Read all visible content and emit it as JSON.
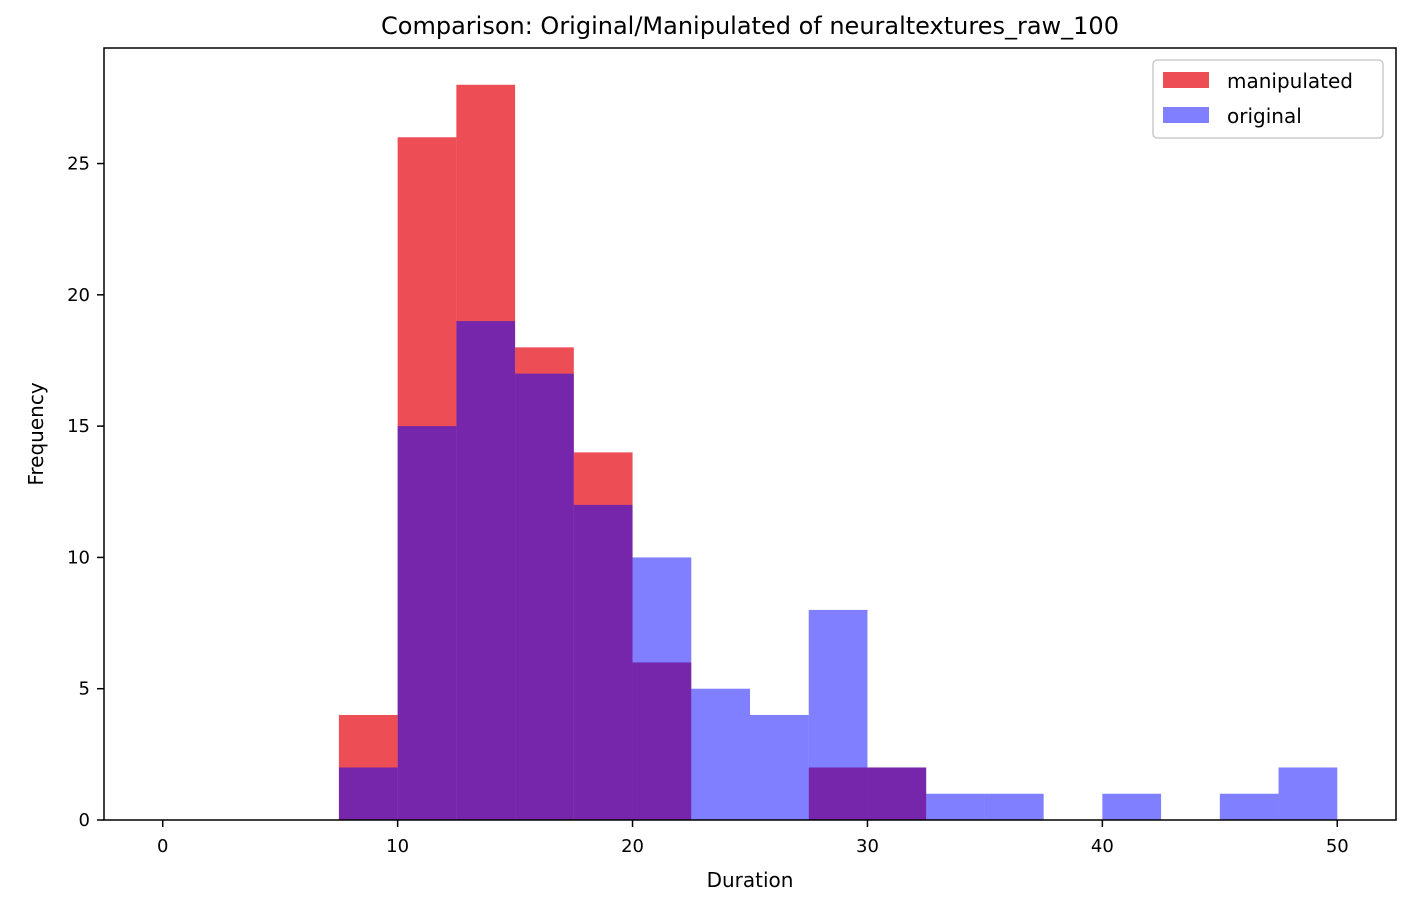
{
  "chart_data": {
    "type": "bar",
    "subtype": "overlaid-histogram",
    "title": "Comparison: Original/Manipulated of neuraltextures_raw_100",
    "xlabel": "Duration",
    "ylabel": "Frequency",
    "xlim": [
      -2.5,
      52.5
    ],
    "ylim": [
      0,
      29.4
    ],
    "xticks": [
      0,
      10,
      20,
      30,
      40,
      50
    ],
    "yticks": [
      0,
      5,
      10,
      15,
      20,
      25
    ],
    "grid": false,
    "legend_position": "top-right",
    "bin_edges": [
      0,
      2.5,
      5,
      7.5,
      10,
      12.5,
      15,
      17.5,
      20,
      22.5,
      25,
      27.5,
      30,
      32.5,
      35,
      37.5,
      40,
      42.5,
      45,
      47.5,
      50
    ],
    "series": [
      {
        "name": "manipulated",
        "color": "#e8202a",
        "opacity": 0.8,
        "values": [
          0,
          0,
          0,
          4,
          26,
          28,
          18,
          14,
          6,
          0,
          0,
          2,
          2,
          0,
          0,
          0,
          0,
          0,
          0,
          0
        ]
      },
      {
        "name": "original",
        "color": "#0000ff",
        "opacity": 0.5,
        "values": [
          0,
          0,
          0,
          2,
          15,
          19,
          17,
          12,
          10,
          5,
          4,
          8,
          2,
          1,
          1,
          0,
          1,
          0,
          1,
          2
        ]
      }
    ]
  }
}
